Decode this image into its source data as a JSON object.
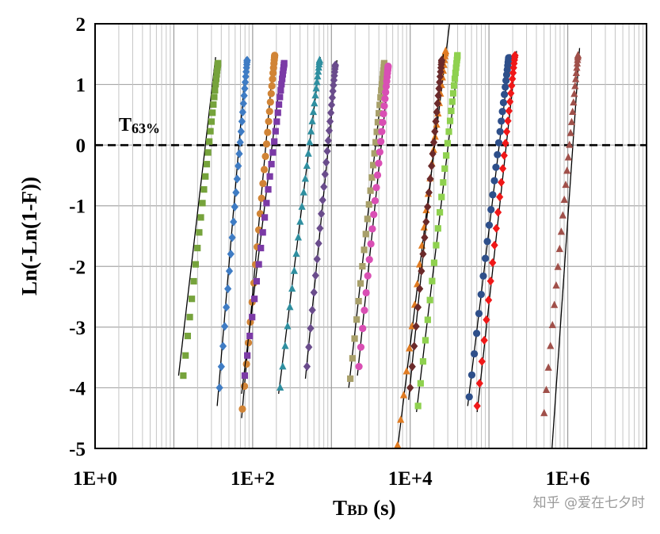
{
  "watermark": "知乎 @爱在七夕时",
  "chart_data": {
    "type": "scatter",
    "xscale": "log10",
    "xlim_log10": [
      0,
      7
    ],
    "ylim": [
      -5,
      2
    ],
    "xticks": [
      {
        "log10": 0,
        "label": "1E+0"
      },
      {
        "log10": 2,
        "label": "1E+2"
      },
      {
        "log10": 4,
        "label": "1E+4"
      },
      {
        "log10": 6,
        "label": "1E+6"
      }
    ],
    "yticks": [
      {
        "value": 2,
        "label": "2"
      },
      {
        "value": 1,
        "label": "1"
      },
      {
        "value": 0,
        "label": "0"
      },
      {
        "value": -1,
        "label": "-1"
      },
      {
        "value": -2,
        "label": "-2"
      },
      {
        "value": -3,
        "label": "-3"
      },
      {
        "value": -4,
        "label": "-4"
      },
      {
        "value": -5,
        "label": "-5"
      }
    ],
    "xlabel": {
      "main": "T",
      "sub": "BD",
      "rest": " (s)"
    },
    "ylabel": "Ln(-Ln(1-F))",
    "reference_line": {
      "y": 0,
      "style": "dashed",
      "label_main": "T",
      "label_sub": "63%"
    },
    "series": [
      {
        "color": "#76a33c",
        "marker": "square",
        "y_min": -3.8,
        "y_max": 1.35,
        "log10_at_y_min": 1.12,
        "log10_at_y_max": 1.56,
        "fit_log10": [
          1.06,
          1.53
        ],
        "fit_y": [
          -3.8,
          1.45
        ]
      },
      {
        "color": "#3f7cc4",
        "marker": "diamond",
        "y_min": -4.0,
        "y_max": 1.4,
        "log10_at_y_min": 1.58,
        "log10_at_y_max": 1.93,
        "fit_log10": [
          1.55,
          1.92
        ],
        "fit_y": [
          -4.3,
          1.45
        ]
      },
      {
        "color": "#d18436",
        "marker": "circle",
        "y_min": -4.35,
        "y_max": 1.48,
        "log10_at_y_min": 1.87,
        "log10_at_y_max": 2.28,
        "fit_log10": [
          1.86,
          2.27
        ],
        "fit_y": [
          -4.5,
          1.5
        ]
      },
      {
        "color": "#7b3aa6",
        "marker": "square",
        "y_min": -3.8,
        "y_max": 1.35,
        "log10_at_y_min": 1.9,
        "log10_at_y_max": 2.4,
        "fit_log10": [
          1.86,
          2.38
        ],
        "fit_y": [
          -4.1,
          1.4
        ]
      },
      {
        "color": "#2f8fa0",
        "marker": "triangle",
        "y_min": -4.0,
        "y_max": 1.4,
        "log10_at_y_min": 2.35,
        "log10_at_y_max": 2.85,
        "fit_log10": [
          2.33,
          2.86
        ],
        "fit_y": [
          -4.1,
          1.45
        ]
      },
      {
        "color": "#6a4c8c",
        "marker": "diamond",
        "y_min": -3.65,
        "y_max": 1.32,
        "log10_at_y_min": 2.69,
        "log10_at_y_max": 3.05,
        "fit_log10": [
          2.67,
          3.07
        ],
        "fit_y": [
          -3.85,
          1.4
        ]
      },
      {
        "color": "#a8a06a",
        "marker": "square",
        "y_min": -3.85,
        "y_max": 1.35,
        "log10_at_y_min": 3.24,
        "log10_at_y_max": 3.67,
        "fit_log10": [
          3.22,
          3.68
        ],
        "fit_y": [
          -4.0,
          1.4
        ]
      },
      {
        "color": "#d94fb4",
        "marker": "circle",
        "y_min": -3.65,
        "y_max": 1.3,
        "log10_at_y_min": 3.35,
        "log10_at_y_max": 3.72,
        "fit_log10": [
          3.33,
          3.74
        ],
        "fit_y": [
          -3.8,
          1.35
        ]
      },
      {
        "color": "#e07b22",
        "marker": "triangle",
        "y_min": -4.95,
        "y_max": 1.55,
        "log10_at_y_min": 3.84,
        "log10_at_y_max": 4.45,
        "fit_log10": [
          3.84,
          4.5
        ],
        "fit_y": [
          -5.0,
          2.0
        ]
      },
      {
        "color": "#6b2a2a",
        "marker": "diamond",
        "y_min": -4.0,
        "y_max": 1.4,
        "log10_at_y_min": 4.0,
        "log10_at_y_max": 4.4,
        "fit_log10": [
          3.98,
          4.42
        ],
        "fit_y": [
          -4.2,
          1.5
        ]
      },
      {
        "color": "#8fd14f",
        "marker": "square",
        "y_min": -4.3,
        "y_max": 1.48,
        "log10_at_y_min": 4.1,
        "log10_at_y_max": 4.6,
        "fit_log10": [
          4.08,
          4.62
        ],
        "fit_y": [
          -4.4,
          1.5
        ]
      },
      {
        "color": "#2e4f8a",
        "marker": "circle",
        "y_min": -4.15,
        "y_max": 1.44,
        "log10_at_y_min": 4.75,
        "log10_at_y_max": 5.25,
        "fit_log10": [
          4.73,
          5.27
        ],
        "fit_y": [
          -4.3,
          1.5
        ]
      },
      {
        "color": "#f01818",
        "marker": "diamond",
        "y_min": -4.3,
        "y_max": 1.48,
        "log10_at_y_min": 4.85,
        "log10_at_y_max": 5.33,
        "fit_log10": [
          4.85,
          5.35
        ],
        "fit_y": [
          -4.4,
          1.55
        ]
      },
      {
        "color": "#a0504a",
        "marker": "triangle",
        "y_min": -4.42,
        "y_max": 1.48,
        "log10_at_y_min": 5.7,
        "log10_at_y_max": 6.13,
        "fit_log10": [
          5.8,
          6.15
        ],
        "fit_y": [
          -5.0,
          1.6
        ]
      }
    ]
  }
}
